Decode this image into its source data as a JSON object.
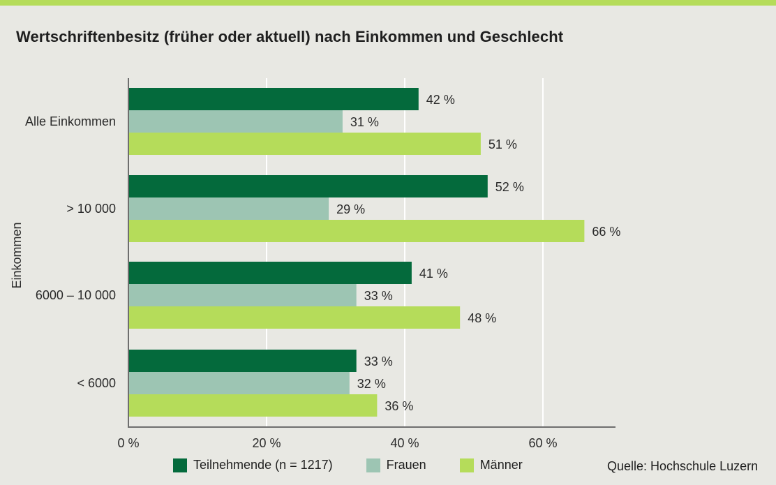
{
  "title": "Wertschriftenbesitz (früher oder aktuell) nach Einkommen und Geschlecht",
  "source": "Quelle: Hochschule Luzern",
  "colors": {
    "Teilnehmende": "#046a3c",
    "Frauen": "#9dc5b3",
    "Männer": "#b5dc5a",
    "background": "#e8e8e3",
    "stripe": "#b5dc5a"
  },
  "chart_data": {
    "type": "bar",
    "orientation": "horizontal",
    "title": "Wertschriftenbesitz (früher oder aktuell) nach Einkommen und Geschlecht",
    "ylabel": "Einkommen",
    "xlabel": "",
    "categories": [
      "Alle Einkommen",
      "> 10 000",
      "6000 – 10 000",
      "< 6000"
    ],
    "series": [
      {
        "name": "Teilnehmende (n = 1217)",
        "key": "Teilnehmende",
        "values": [
          42,
          52,
          41,
          33
        ],
        "labels": [
          "42 %",
          "52 %",
          "41 %",
          "33 %"
        ]
      },
      {
        "name": "Frauen",
        "key": "Frauen",
        "values": [
          31,
          29,
          33,
          32
        ],
        "labels": [
          "31 %",
          "29 %",
          "33 %",
          "32 %"
        ]
      },
      {
        "name": "Männer",
        "key": "Männer",
        "values": [
          51,
          66,
          48,
          36
        ],
        "labels": [
          "51 %",
          "66 %",
          "48 %",
          "36 %"
        ]
      }
    ],
    "xlim": [
      0,
      70
    ],
    "xticks": [
      0,
      20,
      40,
      60
    ],
    "xtick_labels": [
      "0 %",
      "20 %",
      "40 %",
      "60 %"
    ],
    "grid": true,
    "legend": "bottom"
  }
}
